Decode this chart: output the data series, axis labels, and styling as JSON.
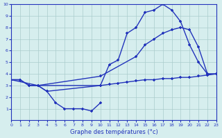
{
  "xlabel": "Graphe des températures (°c)",
  "bg_color": "#d6eeee",
  "line_color": "#2233bb",
  "grid_color": "#aacccc",
  "xlim": [
    0,
    23
  ],
  "ylim": [
    0,
    10
  ],
  "xticks": [
    0,
    1,
    2,
    3,
    4,
    5,
    6,
    7,
    8,
    9,
    10,
    11,
    12,
    13,
    14,
    15,
    16,
    17,
    18,
    19,
    20,
    21,
    22,
    23
  ],
  "yticks": [
    1,
    2,
    3,
    4,
    5,
    6,
    7,
    8,
    9,
    10
  ],
  "line1_x": [
    0,
    1,
    2,
    3,
    4,
    10,
    11,
    12,
    13,
    14,
    15,
    16,
    17,
    18,
    19,
    20,
    21,
    22,
    23
  ],
  "line1_y": [
    3.5,
    3.5,
    3.0,
    3.0,
    2.5,
    3.0,
    4.8,
    5.2,
    7.5,
    8.0,
    9.3,
    9.5,
    10.0,
    9.5,
    8.5,
    6.5,
    5.0,
    4.0,
    4.0
  ],
  "line2_x": [
    0,
    3,
    10,
    14,
    15,
    16,
    17,
    18,
    19,
    20,
    21,
    22,
    23
  ],
  "line2_y": [
    3.5,
    3.0,
    3.8,
    5.5,
    6.5,
    7.0,
    7.5,
    7.8,
    8.0,
    7.8,
    6.3,
    4.0,
    4.0
  ],
  "line3_x": [
    0,
    1,
    2,
    3,
    10,
    11,
    12,
    13,
    14,
    15,
    16,
    17,
    18,
    19,
    20,
    21,
    22,
    23
  ],
  "line3_y": [
    3.5,
    3.5,
    3.0,
    3.0,
    3.0,
    3.1,
    3.2,
    3.3,
    3.4,
    3.5,
    3.5,
    3.6,
    3.6,
    3.7,
    3.7,
    3.8,
    3.9,
    4.0
  ],
  "line4_x": [
    3,
    4,
    5,
    6,
    7,
    8,
    9,
    10
  ],
  "line4_y": [
    3.0,
    2.5,
    1.5,
    1.0,
    1.0,
    1.0,
    0.8,
    1.5
  ]
}
